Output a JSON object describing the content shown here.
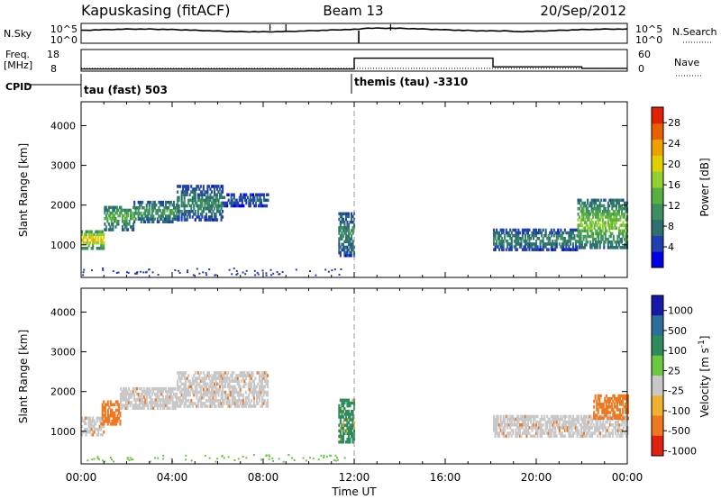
{
  "header": {
    "station": "Kapuskasing (fitACF)",
    "beam": "Beam 13",
    "date": "20/Sep/2012"
  },
  "noise_panel": {
    "left_label": "N.Sky",
    "right_label": "N.Search",
    "left_ticks": [
      "10^5",
      "10^0"
    ],
    "right_ticks": [
      "10^5",
      "10^0"
    ],
    "sky_spikes_hours": [
      8.3,
      9.0,
      13.6
    ],
    "search_dropout_hour": 12.2
  },
  "freq_panel": {
    "left_label_1": "Freq.",
    "left_label_2": "[MHz]",
    "right_label": "Nave",
    "left_ticks": [
      "18",
      "8"
    ],
    "right_ticks": [
      "60",
      "0"
    ],
    "freq_steps": [
      [
        0,
        9
      ],
      [
        12,
        9
      ],
      [
        12,
        14
      ],
      [
        18.1,
        14
      ],
      [
        18.1,
        10
      ],
      [
        22,
        10
      ],
      [
        22,
        9.3
      ],
      [
        24,
        9.3
      ]
    ],
    "nave_level": 9.3
  },
  "cpid": {
    "label": "CPID",
    "segments": [
      {
        "text": "tau (fast) 503",
        "start_hour": 0
      },
      {
        "text": "themis (tau) -3310",
        "start_hour": 12
      }
    ]
  },
  "time_axis": {
    "title": "Time UT",
    "tick_labels": [
      "00:00",
      "04:00",
      "08:00",
      "12:00",
      "16:00",
      "20:00",
      "00:00"
    ],
    "tick_hours": [
      0,
      4,
      8,
      12,
      16,
      20,
      24
    ],
    "range_hours": [
      0,
      24
    ]
  },
  "chart_data": [
    {
      "type": "heatmap",
      "ylabel": "Slant Range [km]",
      "yticks": [
        "1000",
        "2000",
        "3000",
        "4000"
      ],
      "ytick_values": [
        1000,
        2000,
        3000,
        4000
      ],
      "ylim": [
        180,
        4600
      ],
      "xlim_hours": [
        0,
        24
      ],
      "colorbar": {
        "label": "Power [dB]",
        "tick_labels": [
          "28",
          "24",
          "20",
          "16",
          "12",
          "8",
          "4"
        ],
        "tick_values": [
          28,
          24,
          20,
          16,
          12,
          8,
          4
        ],
        "range": [
          0,
          31
        ],
        "colors": [
          "#0000e6",
          "#2040b0",
          "#2e7070",
          "#3c9060",
          "#58b040",
          "#90d030",
          "#e0d000",
          "#f0a000",
          "#e86000",
          "#e02000"
        ]
      },
      "echo_regions": [
        {
          "t0": 0.0,
          "t1": 1.0,
          "r0": 880,
          "r1": 1350,
          "power": 22
        },
        {
          "t0": 1.0,
          "t1": 2.3,
          "r0": 1350,
          "r1": 1980,
          "power": 14
        },
        {
          "t0": 2.3,
          "t1": 4.2,
          "r0": 1550,
          "r1": 2050,
          "power": 12
        },
        {
          "t0": 4.2,
          "t1": 6.2,
          "r0": 1600,
          "r1": 2450,
          "power": 10
        },
        {
          "t0": 6.2,
          "t1": 8.2,
          "r0": 1950,
          "r1": 2250,
          "power": 7
        },
        {
          "t0": 11.3,
          "t1": 12.0,
          "r0": 700,
          "r1": 1800,
          "power": 10
        },
        {
          "t0": 18.1,
          "t1": 21.8,
          "r0": 850,
          "r1": 1350,
          "power": 10
        },
        {
          "t0": 21.8,
          "t1": 24.0,
          "r0": 900,
          "r1": 2100,
          "power": 16
        }
      ]
    },
    {
      "type": "heatmap",
      "ylabel": "Slant Range [km]",
      "yticks": [
        "1000",
        "2000",
        "3000",
        "4000"
      ],
      "ytick_values": [
        1000,
        2000,
        3000,
        4000
      ],
      "ylim": [
        180,
        4600
      ],
      "xlim_hours": [
        0,
        24
      ],
      "colorbar": {
        "label": "Velocity [m s^-1]",
        "tick_labels": [
          "1000",
          "500",
          "100",
          "25",
          "-25",
          "-100",
          "-500",
          "-1000"
        ],
        "colors": [
          "#1818a8",
          "#2c6e9c",
          "#2e8c5c",
          "#6cc840",
          "#c8c8c8",
          "#f0b030",
          "#f07820",
          "#e02010"
        ]
      },
      "echo_regions": [
        {
          "t0": 0.0,
          "t1": 1.0,
          "r0": 880,
          "r1": 1350,
          "velocity": 0
        },
        {
          "t0": 0.9,
          "t1": 1.7,
          "r0": 1150,
          "r1": 1750,
          "velocity": -100
        },
        {
          "t0": 1.7,
          "t1": 4.2,
          "r0": 1550,
          "r1": 2050,
          "velocity": 0
        },
        {
          "t0": 4.2,
          "t1": 8.2,
          "r0": 1600,
          "r1": 2450,
          "velocity": 0
        },
        {
          "t0": 11.3,
          "t1": 12.0,
          "r0": 700,
          "r1": 1800,
          "velocity": 100
        },
        {
          "t0": 18.1,
          "t1": 24.0,
          "r0": 850,
          "r1": 1350,
          "velocity": 0
        },
        {
          "t0": 22.5,
          "t1": 24.0,
          "r0": 1300,
          "r1": 1900,
          "velocity": -100
        }
      ]
    }
  ]
}
